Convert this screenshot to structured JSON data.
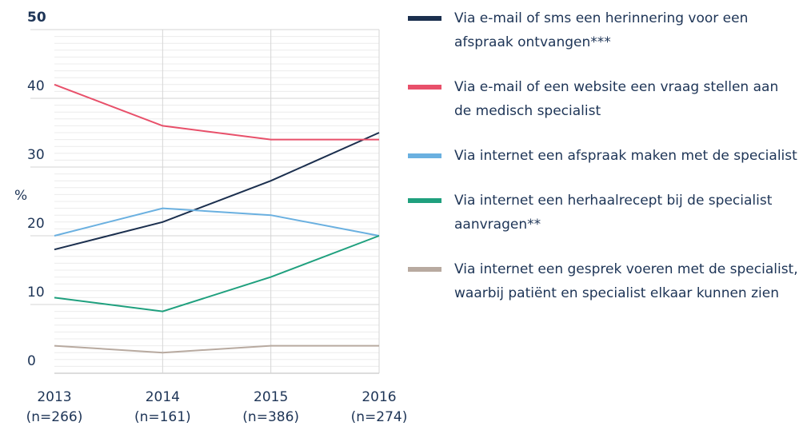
{
  "chart_data": {
    "type": "line",
    "y_label": "%",
    "categories": [
      "2013",
      "2014",
      "2015",
      "2016"
    ],
    "category_notes": [
      "(n=266)",
      "(n=161)",
      "(n=386)",
      "(n=274)"
    ],
    "series": [
      {
        "name": "Via e-mail of sms een herinnering voor een afspraak ontvangen***",
        "color": "#1b2f4e",
        "values": [
          18,
          22,
          28,
          35
        ]
      },
      {
        "name": "Via e-mail of een website een vraag stellen aan de medisch specialist",
        "color": "#e8506a",
        "values": [
          42,
          36,
          34,
          34
        ]
      },
      {
        "name": "Via internet een afspraak maken met de specialist",
        "color": "#6ab0e0",
        "values": [
          20,
          24,
          23,
          20
        ]
      },
      {
        "name": "Via internet een herhaalrecept bij de specialist aanvragen**",
        "color": "#1fa07e",
        "values": [
          11,
          9,
          14,
          20
        ]
      },
      {
        "name": "Via internet een gesprek voeren met de specialist, waarbij patiënt en specialist elkaar kunnen zien",
        "color": "#b8aaa0",
        "values": [
          4,
          3,
          4,
          4
        ]
      }
    ],
    "ylim": [
      0,
      50
    ],
    "yticks": [
      0,
      10,
      20,
      30,
      40,
      50
    ],
    "grid": true,
    "legend": "right"
  }
}
